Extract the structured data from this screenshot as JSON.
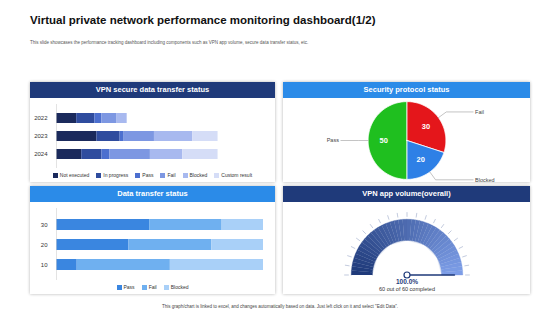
{
  "title": "Virtual private network performance monitoring dashboard(1/2)",
  "subtitle": "This slide showcases the performance tracking dashboard including components such as VPN app volume, secure data transfer status, etc.",
  "footer": "This graph/chart is linked to excel, and changes automatically based on data. Just left click on it and select \"Edit Data\".",
  "chart_data": [
    {
      "type": "bar",
      "title": "VPN secure data transfer status",
      "orientation": "horizontal",
      "stacked": true,
      "legend": "bottom",
      "tick_labels": "y",
      "categories": [
        "2022",
        "2023",
        "2024"
      ],
      "xlim": [
        0,
        205
      ],
      "series": [
        {
          "name": "Not executed",
          "color": "#1b2a5c",
          "values": [
            20,
            40,
            25
          ]
        },
        {
          "name": "In progress",
          "color": "#2f4c9e",
          "values": [
            18,
            23,
            20
          ]
        },
        {
          "name": "Pass",
          "color": "#4c6fcf",
          "values": [
            7,
            4,
            8
          ]
        },
        {
          "name": "Fail",
          "color": "#7d97e2",
          "values": [
            15,
            30,
            40
          ]
        },
        {
          "name": "Blocked",
          "color": "#a8b9ef",
          "values": [
            10,
            38,
            32
          ]
        },
        {
          "name": "Custom result",
          "color": "#d5ddf7",
          "values": [
            0,
            25,
            35
          ]
        }
      ]
    },
    {
      "type": "pie",
      "title": "Security protocol status",
      "data_labels": true,
      "categories": [
        "Pass",
        "Fail",
        "Blocked"
      ],
      "values": [
        50,
        30,
        20
      ],
      "colors": [
        "#1fbf1f",
        "#e4161b",
        "#2e80e6"
      ]
    },
    {
      "type": "bar",
      "title": "Data transfer status",
      "orientation": "horizontal",
      "stacked": true,
      "legend": "bottom",
      "tick_labels": "y",
      "categories": [
        "30",
        "20",
        "10"
      ],
      "xlim": [
        0,
        100
      ],
      "series": [
        {
          "name": "Pass",
          "color": "#3a86e0",
          "values": [
            45,
            35,
            10
          ]
        },
        {
          "name": "Fail",
          "color": "#6fb0f0",
          "values": [
            35,
            40,
            45
          ]
        },
        {
          "name": "Blocked",
          "color": "#a9d0f8",
          "values": [
            20,
            25,
            45
          ]
        }
      ]
    },
    {
      "type": "gauge",
      "title": "VPN app volume(overall)",
      "values": [
        100
      ],
      "ylim": [
        0,
        100
      ],
      "value_labels": [
        "100.0%"
      ],
      "annotations": [
        "60 out of 60 completed"
      ],
      "color": "#1f3a7a"
    }
  ]
}
